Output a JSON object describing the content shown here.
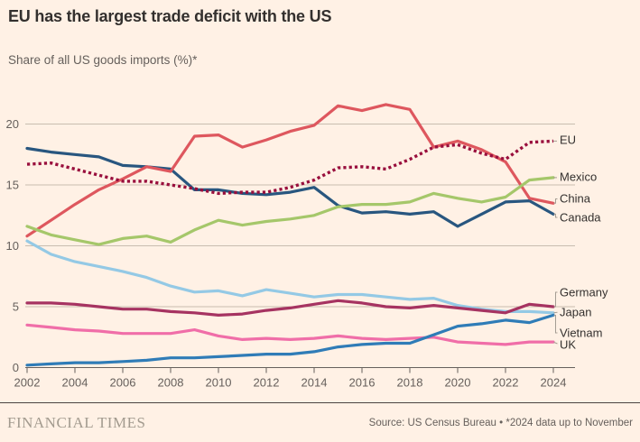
{
  "header": {
    "title": "EU has the largest trade deficit with the US",
    "subtitle": "Share of all US goods imports (%)*"
  },
  "footer": {
    "brand": "FINANCIAL TIMES",
    "source": "Source: US Census Bureau • *2024 data up to November"
  },
  "colors": {
    "background": "#fff1e5",
    "title_text": "#33302e",
    "muted_text": "#66605c",
    "gridline": "#c8bdb0",
    "axis": "#66605c",
    "connector": "#a59d93"
  },
  "chart_data": {
    "type": "line",
    "title": "EU has the largest trade deficit with the US",
    "subtitle": "Share of all US goods imports (%)*",
    "xlabel": "",
    "ylabel": "",
    "grid": "horizontal",
    "legend_position": "right-of-line-ends",
    "x": [
      2002,
      2003,
      2004,
      2005,
      2006,
      2007,
      2008,
      2009,
      2010,
      2011,
      2012,
      2013,
      2014,
      2015,
      2016,
      2017,
      2018,
      2019,
      2020,
      2021,
      2022,
      2023,
      2024
    ],
    "x_tick_labels": [
      "2002",
      "2004",
      "2006",
      "2008",
      "2010",
      "2012",
      "2014",
      "2016",
      "2018",
      "2020",
      "2022",
      "2024"
    ],
    "y_ticks": [
      0,
      5,
      10,
      15,
      20
    ],
    "ylim": [
      0,
      23
    ],
    "series": [
      {
        "name": "Japan",
        "color": "#94c9e5",
        "style": "solid",
        "values": [
          10.4,
          9.3,
          8.7,
          8.3,
          7.9,
          7.4,
          6.7,
          6.2,
          6.3,
          5.9,
          6.4,
          6.1,
          5.8,
          6.0,
          6.0,
          5.8,
          5.6,
          5.7,
          5.1,
          4.8,
          4.6,
          4.6,
          4.5
        ]
      },
      {
        "name": "UK",
        "color": "#f06ea8",
        "style": "solid",
        "values": [
          3.5,
          3.3,
          3.1,
          3.0,
          2.8,
          2.8,
          2.8,
          3.1,
          2.6,
          2.3,
          2.4,
          2.3,
          2.4,
          2.6,
          2.4,
          2.3,
          2.4,
          2.5,
          2.1,
          2.0,
          1.9,
          2.1,
          2.1
        ]
      },
      {
        "name": "Vietnam",
        "color": "#2f7cb7",
        "style": "solid",
        "values": [
          0.2,
          0.3,
          0.4,
          0.4,
          0.5,
          0.6,
          0.8,
          0.8,
          0.9,
          1.0,
          1.1,
          1.1,
          1.3,
          1.7,
          1.9,
          2.0,
          2.0,
          2.7,
          3.4,
          3.6,
          3.9,
          3.7,
          4.3
        ]
      },
      {
        "name": "Germany",
        "color": "#a63361",
        "style": "solid",
        "values": [
          5.3,
          5.3,
          5.2,
          5.0,
          4.8,
          4.8,
          4.6,
          4.5,
          4.3,
          4.4,
          4.7,
          4.9,
          5.2,
          5.5,
          5.3,
          5.0,
          4.9,
          5.1,
          4.9,
          4.7,
          4.5,
          5.2,
          5.0
        ]
      },
      {
        "name": "Canada",
        "color": "#28567f",
        "style": "solid",
        "values": [
          18.0,
          17.7,
          17.5,
          17.3,
          16.6,
          16.5,
          16.3,
          14.6,
          14.6,
          14.3,
          14.2,
          14.4,
          14.8,
          13.3,
          12.7,
          12.8,
          12.6,
          12.8,
          11.6,
          12.6,
          13.6,
          13.7,
          12.6
        ]
      },
      {
        "name": "China",
        "color": "#de575e",
        "style": "solid",
        "values": [
          10.8,
          12.1,
          13.4,
          14.6,
          15.5,
          16.5,
          16.1,
          19.0,
          19.1,
          18.1,
          18.7,
          19.4,
          19.9,
          21.5,
          21.1,
          21.6,
          21.2,
          18.1,
          18.6,
          17.9,
          16.9,
          13.9,
          13.5
        ]
      },
      {
        "name": "Mexico",
        "color": "#a5c76a",
        "style": "solid",
        "values": [
          11.6,
          10.9,
          10.5,
          10.1,
          10.6,
          10.8,
          10.3,
          11.3,
          12.1,
          11.7,
          12.0,
          12.2,
          12.5,
          13.2,
          13.4,
          13.4,
          13.6,
          14.3,
          13.9,
          13.6,
          14.0,
          15.4,
          15.6
        ]
      },
      {
        "name": "EU",
        "color": "#990f3d",
        "style": "dotted",
        "values": [
          16.7,
          16.8,
          16.3,
          15.8,
          15.3,
          15.3,
          15.0,
          14.7,
          14.3,
          14.4,
          14.4,
          14.8,
          15.4,
          16.4,
          16.5,
          16.3,
          17.1,
          18.1,
          18.3,
          17.6,
          17.1,
          18.5,
          18.6
        ]
      }
    ]
  }
}
